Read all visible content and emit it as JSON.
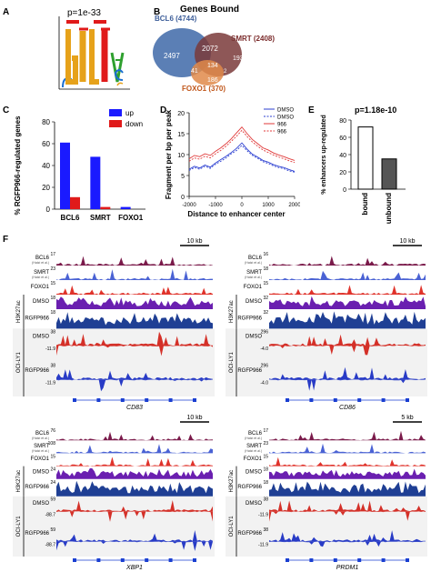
{
  "panels": {
    "A": {
      "letter": "A",
      "pvalue": "p=1e-33"
    },
    "B": {
      "letter": "B",
      "title": "Genes Bound",
      "sets": [
        {
          "name": "BCL6 (4744)",
          "color": "#5b7fb5"
        },
        {
          "name": "SMRT (2408)",
          "color": "#7a2a2a"
        },
        {
          "name": "FOXO1 (370)",
          "color": "#e07a2a"
        }
      ],
      "regions": [
        "2497",
        "2072",
        "193",
        "134",
        "41",
        "186",
        "2"
      ]
    },
    "C": {
      "letter": "C",
      "ylabel": "% RGFP966-regulated genes",
      "legend": [
        {
          "name": "up",
          "color": "#1a1aff"
        },
        {
          "name": "down",
          "color": "#e01a1a"
        }
      ]
    },
    "D": {
      "letter": "D",
      "ylabel": "Fragment per bp per peak",
      "xlabel": "Distance to enhancer center",
      "legend": [
        "DMSO",
        "DMSO",
        "966",
        "966"
      ]
    },
    "E": {
      "letter": "E",
      "pvalue": "p=1.18e-10",
      "ylabel": "% enhancers up-regulated"
    },
    "F": {
      "letter": "F"
    }
  },
  "chart_data": [
    {
      "type": "bar",
      "panel": "C",
      "title": "",
      "xlabel": "",
      "ylabel": "% RGFP966-regulated genes",
      "categories": [
        "BCL6",
        "SMRT",
        "FOXO1"
      ],
      "series": [
        {
          "name": "up",
          "values": [
            61,
            48,
            2
          ]
        },
        {
          "name": "down",
          "values": [
            11,
            2,
            0
          ]
        }
      ],
      "ylim": [
        0,
        80
      ],
      "yticks": [
        "0",
        "20",
        "40",
        "60",
        "80"
      ]
    },
    {
      "type": "line",
      "panel": "D",
      "title": "",
      "xlabel": "Distance to enhancer center",
      "ylabel": "Fragment per bp per peak",
      "xlim": [
        -2000,
        2000
      ],
      "ylim": [
        0,
        20
      ],
      "xticks": [
        "-2000",
        "-1000",
        "0",
        "1000",
        "2000"
      ],
      "yticks": [
        "0",
        "5",
        "10",
        "15",
        "20"
      ],
      "x": [
        -2000,
        -1800,
        -1600,
        -1400,
        -1200,
        -1000,
        -800,
        -600,
        -400,
        -200,
        0,
        200,
        400,
        600,
        800,
        1000,
        1200,
        1400,
        1600,
        1800,
        2000
      ],
      "series": [
        {
          "name": "DMSO",
          "style": "solid",
          "color": "#2b3fd1",
          "values": [
            6.5,
            7.2,
            6.8,
            7.5,
            7.0,
            8.0,
            8.8,
            9.6,
            10.5,
            11.5,
            12.8,
            11.3,
            10.1,
            9.4,
            8.6,
            8.2,
            7.6,
            7.2,
            6.9,
            6.4,
            6.0
          ]
        },
        {
          "name": "DMSO",
          "style": "dashed",
          "color": "#2b3fd1",
          "values": [
            6.2,
            6.9,
            6.5,
            7.2,
            6.7,
            7.7,
            8.4,
            9.2,
            10.2,
            11.0,
            12.2,
            10.9,
            9.8,
            9.1,
            8.3,
            7.9,
            7.3,
            6.9,
            6.6,
            6.1,
            5.8
          ]
        },
        {
          "name": "966",
          "style": "solid",
          "color": "#e03a3a",
          "values": [
            9.0,
            9.8,
            9.5,
            10.2,
            9.8,
            10.8,
            11.6,
            12.6,
            13.8,
            15.2,
            16.6,
            15.0,
            13.6,
            12.6,
            11.6,
            11.1,
            10.4,
            9.9,
            9.5,
            9.0,
            8.6
          ]
        },
        {
          "name": "966",
          "style": "dashed",
          "color": "#e03a3a",
          "values": [
            8.4,
            9.2,
            8.9,
            9.6,
            9.2,
            10.2,
            11.0,
            12.0,
            13.2,
            14.4,
            15.8,
            14.3,
            13.0,
            12.0,
            11.1,
            10.5,
            9.9,
            9.4,
            9.0,
            8.5,
            8.1
          ]
        }
      ]
    },
    {
      "type": "bar",
      "panel": "E",
      "title": "",
      "xlabel": "",
      "ylabel": "% enhancers up-regulated",
      "categories": [
        "bound",
        "unbound"
      ],
      "values": [
        72,
        35
      ],
      "colors": [
        "#ffffff",
        "#555555"
      ],
      "ylim": [
        0,
        80
      ],
      "yticks": [
        "0",
        "20",
        "40",
        "60",
        "80"
      ]
    }
  ],
  "tracks": {
    "blocks": [
      {
        "gene": "CD83",
        "scale": "10 kb",
        "rows": [
          {
            "label": "BCL6",
            "max": "17",
            "note": "(Hatzi et al.)",
            "color": "#7a1a4a"
          },
          {
            "label": "SMRT",
            "max": "23",
            "note": "(Hatzi et al.)",
            "color": "#4a62d4"
          },
          {
            "label": "FOXO1",
            "max": "15",
            "note": "",
            "color": "#e0332b"
          },
          {
            "label": "DMSO",
            "max": "18",
            "note": "",
            "color": "#6a1fb0"
          },
          {
            "label": "RGFP966",
            "max": "18",
            "note": "",
            "color": "#1f3f94"
          },
          {
            "label": "DMSO",
            "max": "38",
            "note": "",
            "color": "#e0332b"
          },
          {
            "label": "",
            "max": "-11.9",
            "note": "",
            "color": "#e0332b"
          },
          {
            "label": "RGFP966",
            "max": "38",
            "note": "",
            "color": "#2b3fd1"
          },
          {
            "label": "",
            "max": "-11.9",
            "note": "",
            "color": "#2b3fd1"
          }
        ],
        "group1": "H3K27ac",
        "group2": "OCI-LY1"
      },
      {
        "gene": "CD86",
        "scale": "10 kb",
        "rows": [
          {
            "label": "BCL6",
            "max": "16",
            "note": "(Hatzi et al.)",
            "color": "#7a1a4a"
          },
          {
            "label": "SMRT",
            "max": "18",
            "note": "(Hatzi et al.)",
            "color": "#4a62d4"
          },
          {
            "label": "FOXO1",
            "max": "15",
            "note": "",
            "color": "#e0332b"
          },
          {
            "label": "DMSO",
            "max": "32",
            "note": "",
            "color": "#6a1fb0"
          },
          {
            "label": "RGFP966",
            "max": "32",
            "note": "",
            "color": "#1f3f94"
          },
          {
            "label": "DMSO",
            "max": "296",
            "note": "",
            "color": "#e0332b"
          },
          {
            "label": "",
            "max": "-4.0",
            "note": "",
            "color": "#e0332b"
          },
          {
            "label": "RGFP966",
            "max": "296",
            "note": "",
            "color": "#2b3fd1"
          },
          {
            "label": "",
            "max": "-4.0",
            "note": "",
            "color": "#2b3fd1"
          }
        ],
        "group1": "H3K27ac",
        "group2": "OCI-LY1"
      },
      {
        "gene": "XBP1",
        "scale": "10 kb",
        "rows": [
          {
            "label": "BCL6",
            "max": "76",
            "note": "(Hatzi et al.)",
            "color": "#7a1a4a"
          },
          {
            "label": "SMRT",
            "max": "108",
            "note": "(Hatzi et al.)",
            "color": "#4a62d4"
          },
          {
            "label": "FOXO1",
            "max": "15",
            "note": "",
            "color": "#e0332b"
          },
          {
            "label": "DMSO",
            "max": "24",
            "note": "",
            "color": "#6a1fb0"
          },
          {
            "label": "RGFP966",
            "max": "24",
            "note": "",
            "color": "#1f3f94"
          },
          {
            "label": "DMSO",
            "max": "59",
            "note": "",
            "color": "#e0332b"
          },
          {
            "label": "",
            "max": "-88.7",
            "note": "",
            "color": "#e0332b"
          },
          {
            "label": "RGFP966",
            "max": "59",
            "note": "",
            "color": "#2b3fd1"
          },
          {
            "label": "",
            "max": "-88.7",
            "note": "",
            "color": "#2b3fd1"
          }
        ],
        "group1": "H3K27ac",
        "group2": "OCI-LY1"
      },
      {
        "gene": "PRDM1",
        "scale": "5 kb",
        "rows": [
          {
            "label": "BCL6",
            "max": "17",
            "note": "(Hatzi et al.)",
            "color": "#7a1a4a"
          },
          {
            "label": "SMRT",
            "max": "23",
            "note": "(Hatzi et al.)",
            "color": "#4a62d4"
          },
          {
            "label": "FOXO1",
            "max": "15",
            "note": "",
            "color": "#e0332b"
          },
          {
            "label": "DMSO",
            "max": "18",
            "note": "",
            "color": "#6a1fb0"
          },
          {
            "label": "RGFP966",
            "max": "18",
            "note": "",
            "color": "#1f3f94"
          },
          {
            "label": "DMSO",
            "max": "38",
            "note": "",
            "color": "#e0332b"
          },
          {
            "label": "",
            "max": "-11.9",
            "note": "",
            "color": "#e0332b"
          },
          {
            "label": "RGFP966",
            "max": "38",
            "note": "",
            "color": "#2b3fd1"
          },
          {
            "label": "",
            "max": "-11.9",
            "note": "",
            "color": "#2b3fd1"
          }
        ],
        "group1": "H3K27ac",
        "group2": "OCI-LY1"
      }
    ]
  }
}
